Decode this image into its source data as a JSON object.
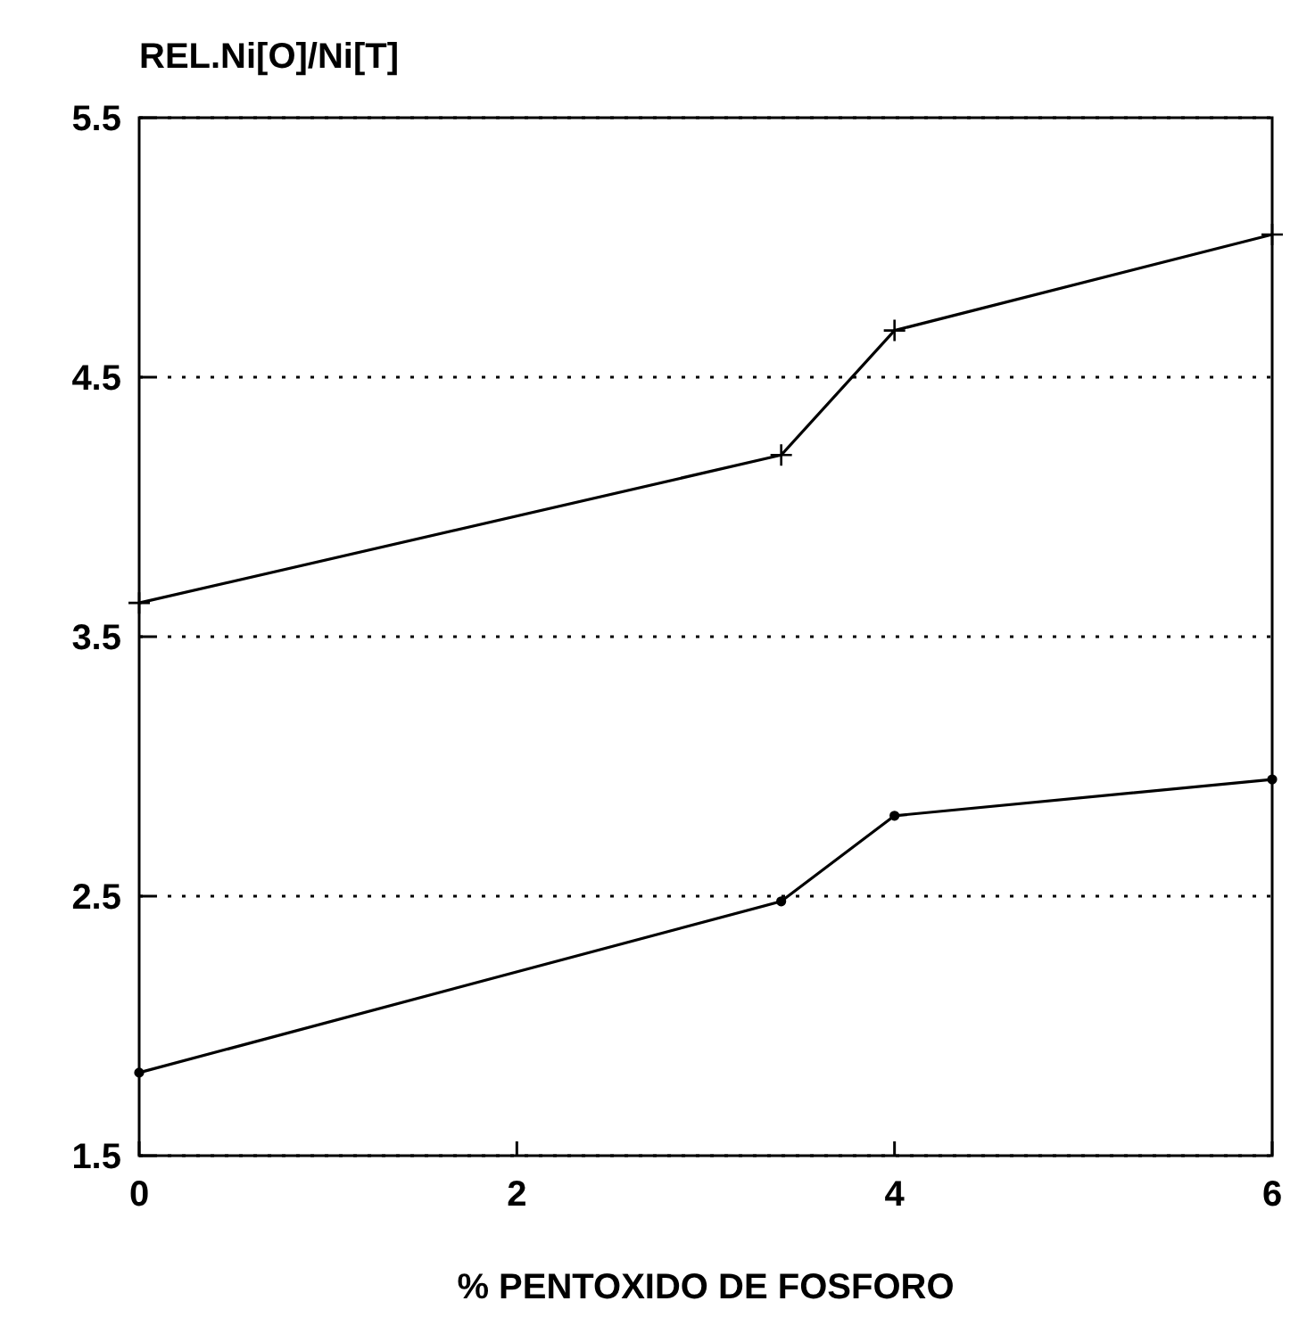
{
  "chart_data": {
    "type": "line",
    "ylabel": "REL.Ni[O]/Ni[T]",
    "xlabel": "% PENTOXIDO DE FOSFORO",
    "x": [
      0,
      3.4,
      4,
      6
    ],
    "series": [
      {
        "color": "#000000",
        "values": [
          3.63,
          4.2,
          4.68,
          5.05
        ],
        "marker": "cross"
      },
      {
        "color": "#000000",
        "values": [
          1.82,
          2.48,
          2.81,
          2.95
        ],
        "marker": "circle"
      }
    ],
    "xlim": [
      0,
      6
    ],
    "xticks": [
      0,
      2,
      4,
      6
    ],
    "ylim": [
      1.5,
      5.5
    ],
    "yticks": [
      1.5,
      2.5,
      3.5,
      4.5,
      5.5
    ],
    "grid": "y",
    "line_style": "solid"
  }
}
